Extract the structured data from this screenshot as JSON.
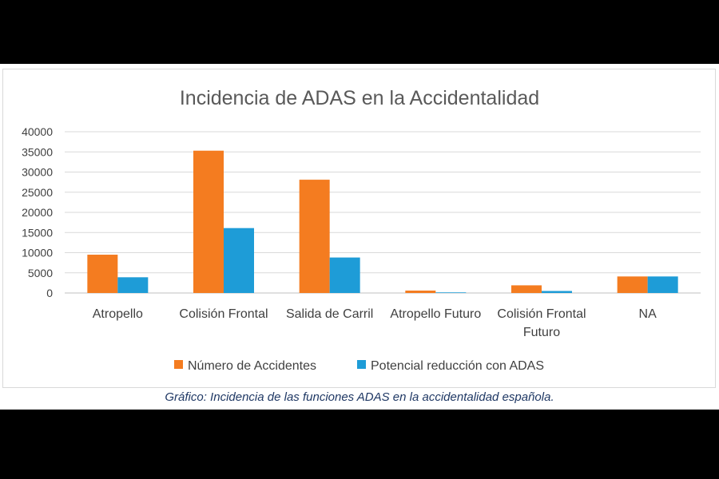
{
  "caption": "Gráfico: Incidencia de las funciones ADAS en la accidentalidad española.",
  "chart_data": {
    "type": "bar",
    "title": "Incidencia de ADAS en la Accidentalidad",
    "categories": [
      [
        "Atropello"
      ],
      [
        "Colisión Frontal"
      ],
      [
        "Salida de Carril"
      ],
      [
        "Atropello Futuro"
      ],
      [
        "Colisión Frontal",
        "Futuro"
      ],
      [
        "NA"
      ]
    ],
    "series": [
      {
        "name": "Número de Accidentes",
        "color": "#f47c20",
        "values": [
          9500,
          35300,
          28100,
          600,
          1900,
          4100
        ]
      },
      {
        "name": "Potencial reducción con ADAS",
        "color": "#1e9cd7",
        "values": [
          3900,
          16100,
          8800,
          150,
          500,
          4100
        ]
      }
    ],
    "ylim": [
      0,
      40000
    ],
    "yticks": [
      "0",
      "5000",
      "10000",
      "15000",
      "20000",
      "25000",
      "30000",
      "35000",
      "40000"
    ],
    "xlabel": "",
    "ylabel": "",
    "grid": true,
    "legend_position": "bottom"
  }
}
